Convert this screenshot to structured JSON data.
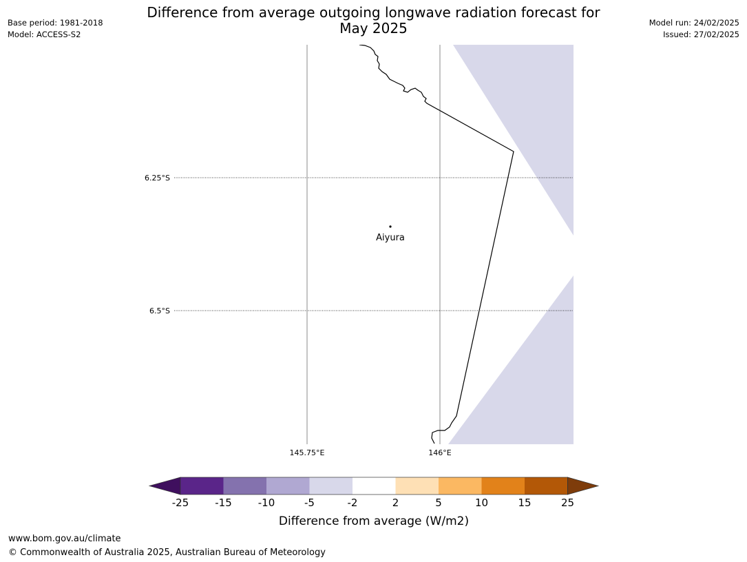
{
  "header": {
    "title_line1": "Difference from average outgoing longwave radiation forecast for",
    "title_line2": "May 2025",
    "base_period": "Base period: 1981-2018",
    "model": "Model: ACCESS-S2",
    "model_run": "Model run: 24/02/2025",
    "issued": "Issued: 27/02/2025"
  },
  "map": {
    "lat_labels": [
      "6.25°S",
      "6.5°S"
    ],
    "lon_labels": [
      "145.75°E",
      "146°E"
    ],
    "place": "Aiyura",
    "shaded_category_color": "#d8d8ea"
  },
  "colorbar": {
    "ticks": [
      "-25",
      "-15",
      "-10",
      "-5",
      "-2",
      "2",
      "5",
      "10",
      "15",
      "25"
    ],
    "colors": [
      "#3f0f5e",
      "#5a2589",
      "#8472ae",
      "#b0a8d2",
      "#d8d8ea",
      "#ffffff",
      "#fee0b5",
      "#fbb862",
      "#e2821a",
      "#b35807",
      "#7e3c0b"
    ],
    "label": "Difference from average (W/m2)"
  },
  "footer": {
    "url": "www.bom.gov.au/climate",
    "copyright": "© Commonwealth of Australia 2025, Australian Bureau of Meteorology"
  }
}
